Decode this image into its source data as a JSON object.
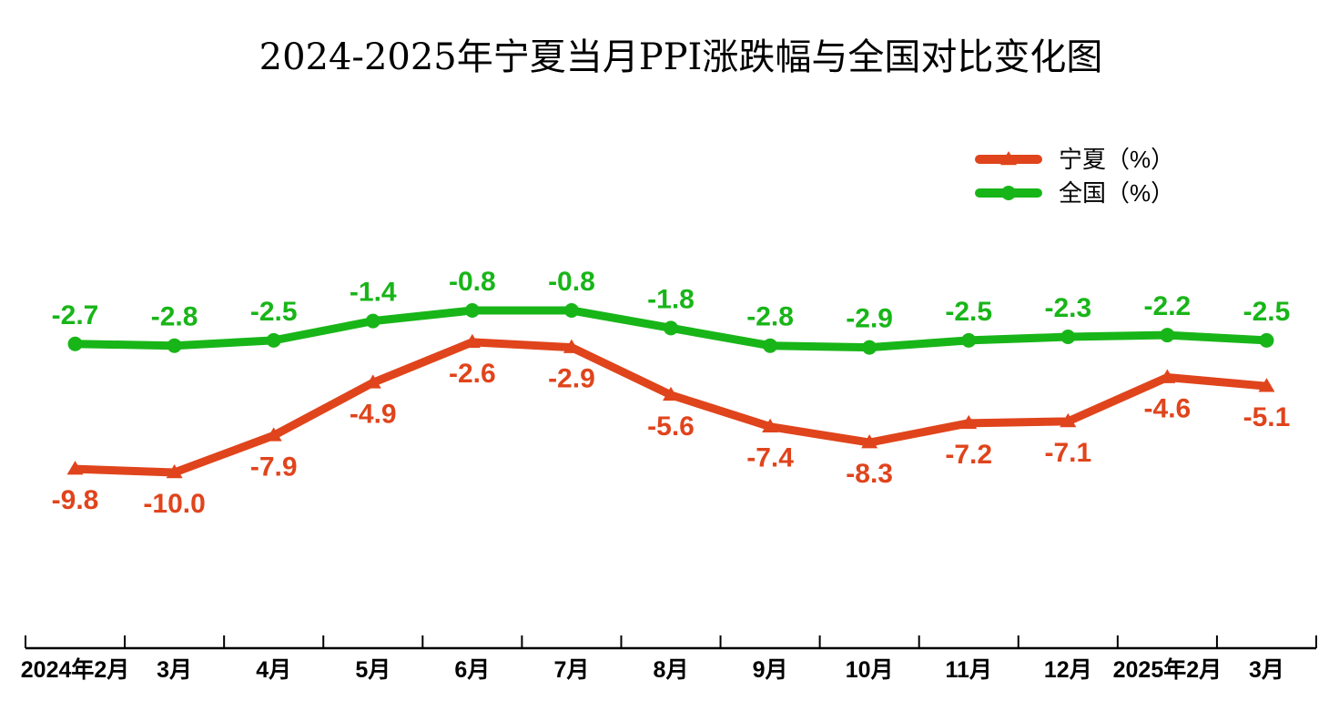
{
  "title": "2024-2025年宁夏当月PPI涨跌幅与全国对比变化图",
  "chart_data": {
    "type": "line",
    "title": "2024-2025年宁夏当月PPI涨跌幅与全国对比变化图",
    "categories": [
      "2024年2月",
      "3月",
      "4月",
      "5月",
      "6月",
      "7月",
      "8月",
      "9月",
      "10月",
      "11月",
      "12月",
      "2025年2月",
      "3月"
    ],
    "series": [
      {
        "name": "宁夏（%）",
        "color": "#e0441c",
        "marker": "triangle",
        "values": [
          -9.8,
          -10.0,
          -7.9,
          -4.9,
          -2.6,
          -2.9,
          -5.6,
          -7.4,
          -8.3,
          -7.2,
          -7.1,
          -4.6,
          -5.1
        ],
        "labels": [
          "-9.8",
          "-10.0",
          "-7.9",
          "-4.9",
          "-2.6",
          "-2.9",
          "-5.6",
          "-7.4",
          "-8.3",
          "-7.2",
          "-7.1",
          "-4.6",
          "-5.1"
        ]
      },
      {
        "name": "全国（%）",
        "color": "#18b518",
        "marker": "circle",
        "values": [
          -2.7,
          -2.8,
          -2.5,
          -1.4,
          -0.8,
          -0.8,
          -1.8,
          -2.8,
          -2.9,
          -2.5,
          -2.3,
          -2.2,
          -2.5
        ],
        "labels": [
          "-2.7",
          "-2.8",
          "-2.5",
          "-1.4",
          "-0.8",
          "-0.8",
          "-1.8",
          "-2.8",
          "-2.9",
          "-2.5",
          "-2.3",
          "-2.2",
          "-2.5"
        ]
      }
    ],
    "legend_position": "top-right",
    "grid": false,
    "y_axis_visible": false
  }
}
